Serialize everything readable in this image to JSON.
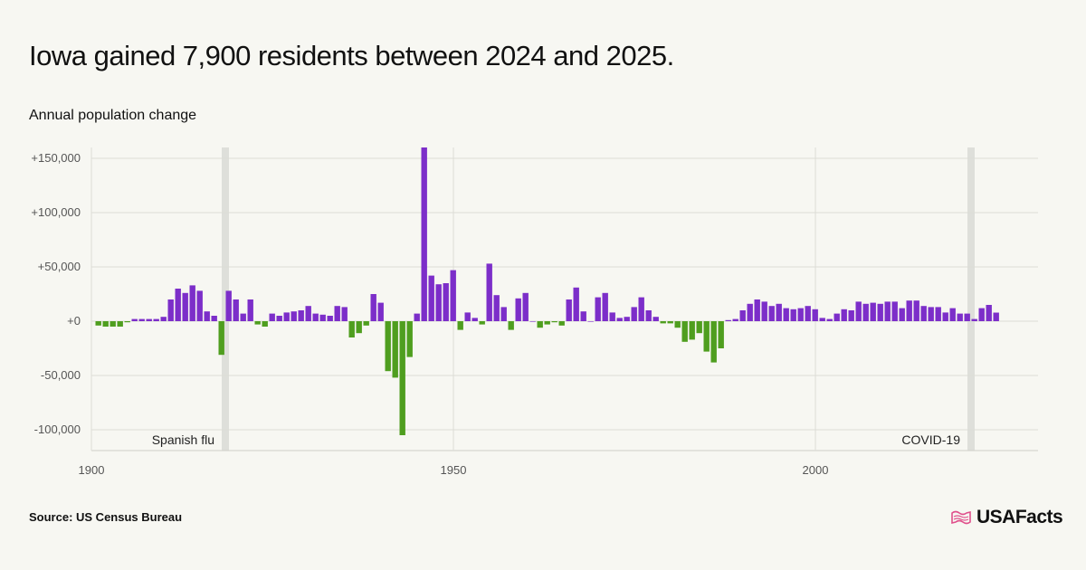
{
  "title": "Iowa gained 7,900 residents between 2024 and 2025.",
  "subtitle": "Annual population change",
  "source": "Source: US Census Bureau",
  "logo": {
    "text": "USAFacts",
    "icon": "us-map-flag-icon"
  },
  "colors": {
    "positive": "#7c2ec9",
    "negative": "#4f9e1f",
    "highlight_band": "#dedfda",
    "grid": "#dcdcd6"
  },
  "chart_data": {
    "type": "bar",
    "x_start_year": 1901,
    "ylim": [
      -120000,
      160000
    ],
    "yticks": [
      150000,
      100000,
      50000,
      0,
      -50000,
      -100000
    ],
    "ytick_labels": [
      "+150,000",
      "+100,000",
      "+50,000",
      "+0",
      "-50,000",
      "-100,000"
    ],
    "xticks": [
      1900,
      1950,
      2000
    ],
    "xtick_labels": [
      "1900",
      "1950",
      "2000"
    ],
    "grid": "horizontal and vertical major gridlines",
    "annotations": [
      {
        "label": "Spanish flu",
        "year": 1918
      },
      {
        "label": "COVID-19",
        "year": 2021
      }
    ],
    "values": [
      -4000,
      -5000,
      -5000,
      -5000,
      -1000,
      2000,
      2000,
      2000,
      2000,
      4000,
      20000,
      30000,
      26000,
      33000,
      28000,
      9000,
      5000,
      -31000,
      28000,
      20000,
      7000,
      20000,
      -3000,
      -5000,
      7000,
      5000,
      8000,
      9000,
      10000,
      14000,
      7000,
      6000,
      5000,
      14000,
      13000,
      -15000,
      -11000,
      -4000,
      25000,
      17000,
      -46000,
      -52000,
      -105000,
      -33000,
      7000,
      160000,
      42000,
      34000,
      35000,
      47000,
      -8000,
      8000,
      3000,
      -3000,
      53000,
      24000,
      13000,
      -8000,
      21000,
      26000,
      0,
      -6000,
      -3000,
      -1000,
      -4000,
      20000,
      31000,
      9000,
      0,
      22000,
      26000,
      8000,
      3000,
      4000,
      13000,
      22000,
      10000,
      4000,
      -2000,
      -2000,
      -6000,
      -19000,
      -17000,
      -11000,
      -28000,
      -38000,
      -25000,
      1000,
      2000,
      10000,
      16000,
      20000,
      18000,
      14000,
      16000,
      12000,
      11000,
      12000,
      14000,
      11000,
      3000,
      2000,
      7000,
      11000,
      10000,
      18000,
      16000,
      17000,
      16000,
      18000,
      18000,
      12000,
      19000,
      19000,
      14000,
      13000,
      13000,
      8000,
      12000,
      7000,
      7000,
      2000,
      12000,
      15000,
      7900
    ]
  }
}
